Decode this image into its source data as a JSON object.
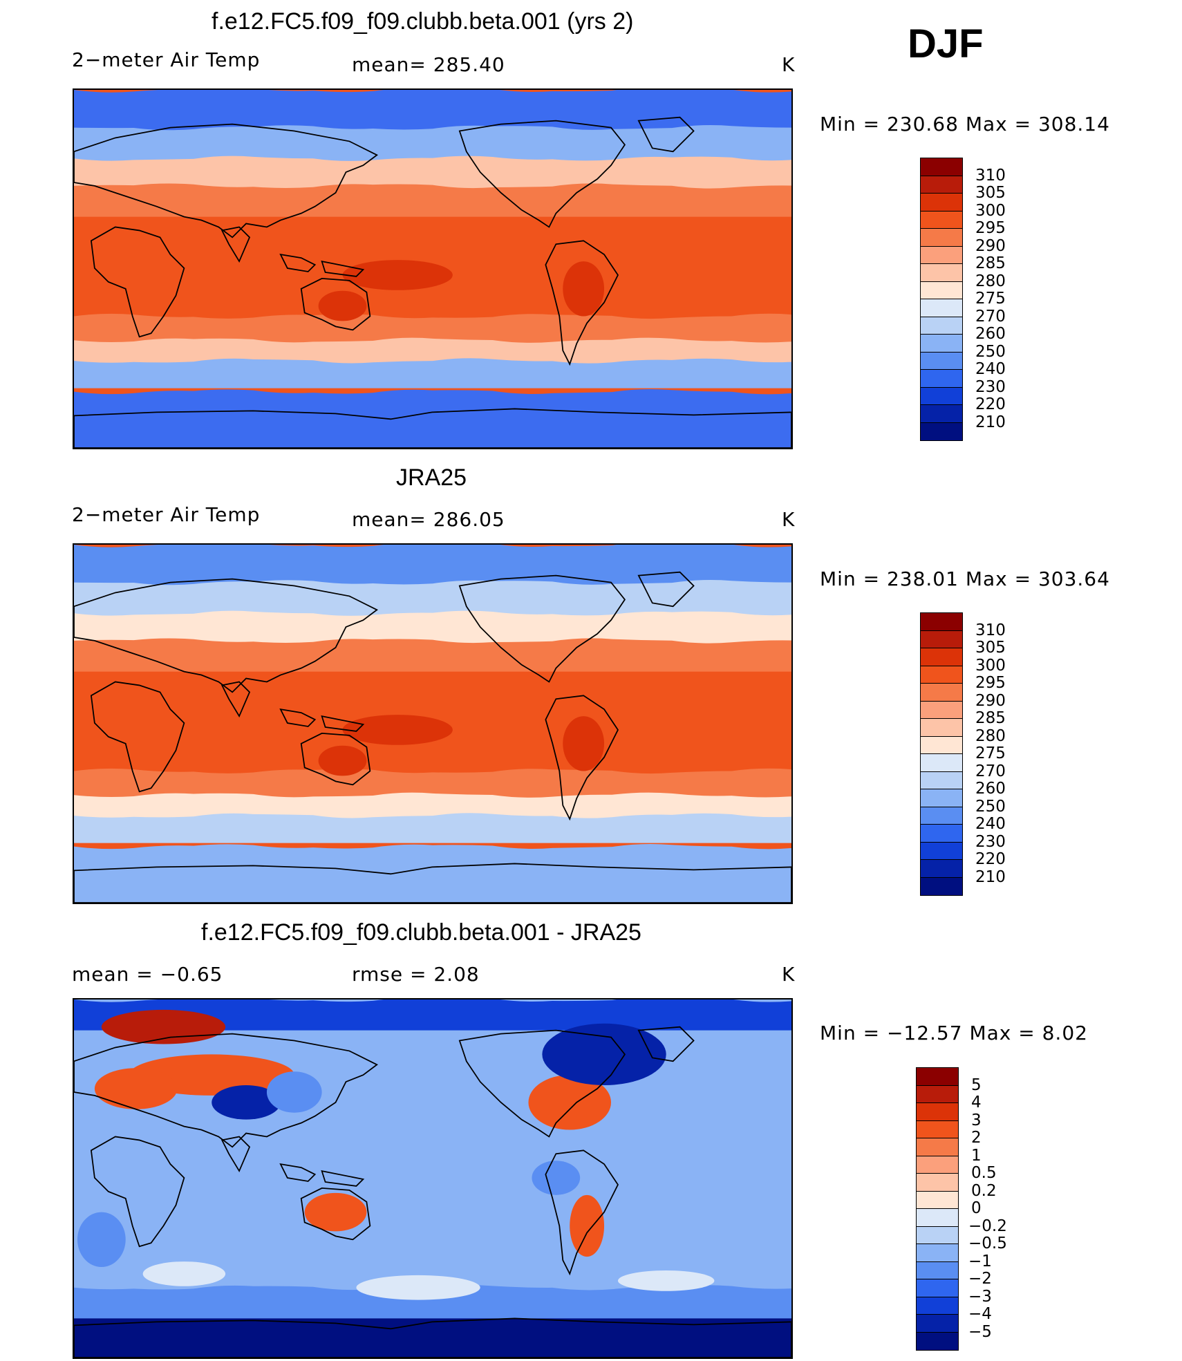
{
  "season": "DJF",
  "panels": [
    {
      "id": "model",
      "title": "f.e12.FC5.f09_f09.clubb.beta.001 (yrs 2)",
      "left_label": "2−meter Air Temp",
      "center_label": "mean=  285.40",
      "units": "K",
      "minmax": "Min  =  230.68  Max  =  308.14",
      "colorbar": {
        "levels": [
          "310",
          "305",
          "300",
          "295",
          "290",
          "285",
          "280",
          "275",
          "270",
          "260",
          "250",
          "240",
          "230",
          "220",
          "210"
        ],
        "colors": [
          "#8b0000",
          "#b81c0a",
          "#dc3308",
          "#f0541c",
          "#f57a48",
          "#fba07c",
          "#fdc4a8",
          "#ffe6d4",
          "#dce8f8",
          "#b9d2f5",
          "#8ab3f5",
          "#5a8ef2",
          "#2f66ef",
          "#1140d8",
          "#0522a8",
          "#000f80"
        ]
      },
      "map_colors": {
        "arctic": "#3c6cf0",
        "subpolar": "#8ab3f5",
        "midlat": "#fdc4a8",
        "subtrop": "#f57a48",
        "tropic": "#f0541c",
        "hot": "#dc3308",
        "antarctic": "#3c6cf0"
      }
    },
    {
      "id": "obs",
      "title": "JRA25",
      "left_label": "2−meter Air Temp",
      "center_label": "mean=  286.05",
      "units": "K",
      "minmax": "Min  =  238.01  Max  =  303.64",
      "colorbar": {
        "levels": [
          "310",
          "305",
          "300",
          "295",
          "290",
          "285",
          "280",
          "275",
          "270",
          "260",
          "250",
          "240",
          "230",
          "220",
          "210"
        ],
        "colors": [
          "#8b0000",
          "#b81c0a",
          "#dc3308",
          "#f0541c",
          "#f57a48",
          "#fba07c",
          "#fdc4a8",
          "#ffe6d4",
          "#dce8f8",
          "#b9d2f5",
          "#8ab3f5",
          "#5a8ef2",
          "#2f66ef",
          "#1140d8",
          "#0522a8",
          "#000f80"
        ]
      },
      "map_colors": {
        "arctic": "#5a8ef2",
        "subpolar": "#b9d2f5",
        "midlat": "#ffe6d4",
        "subtrop": "#f57a48",
        "tropic": "#f0541c",
        "hot": "#dc3308",
        "antarctic": "#8ab3f5"
      }
    },
    {
      "id": "diff",
      "title": "f.e12.FC5.f09_f09.clubb.beta.001 - JRA25",
      "left_label": "mean  =    −0.65",
      "center_label": "rmse  =     2.08",
      "units": "K",
      "minmax": "Min  =  −12.57  Max  =       8.02",
      "colorbar": {
        "levels": [
          "5",
          "4",
          "3",
          "2",
          "1",
          "0.5",
          "0.2",
          "0",
          "−0.2",
          "−0.5",
          "−1",
          "−2",
          "−3",
          "−4",
          "−5"
        ],
        "colors": [
          "#8b0000",
          "#b81c0a",
          "#dc3308",
          "#f0541c",
          "#f57a48",
          "#fba07c",
          "#fdc4a8",
          "#ffe6d4",
          "#dce8f8",
          "#b9d2f5",
          "#8ab3f5",
          "#5a8ef2",
          "#2f66ef",
          "#1140d8",
          "#0522a8",
          "#000f80"
        ]
      },
      "map_colors": {
        "base": "#8ab3f5",
        "warm": "#f0541c",
        "hot": "#b81c0a",
        "cold": "#0522a8",
        "cool": "#5a8ef2",
        "light": "#dce8f8",
        "antarctic": "#000f80",
        "arctic": "#1140d8"
      }
    }
  ]
}
